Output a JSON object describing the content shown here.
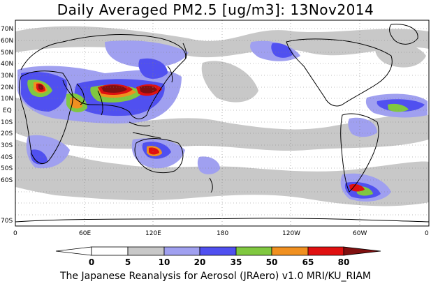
{
  "title": "Daily Averaged PM2.5 [ug/m3]: 13Nov2014",
  "footer": "The Japanese Reanalysis for Aerosol (JRAero) v1.0 MRI/KU_RIAM",
  "lat_labels": [
    "70N",
    "60N",
    "50N",
    "40N",
    "30N",
    "20N",
    "10N",
    "EQ",
    "10S",
    "20S",
    "30S",
    "40S",
    "50S",
    "60S",
    "70S"
  ],
  "lon_labels": [
    "0",
    "60E",
    "120E",
    "180",
    "120W",
    "60W",
    "0"
  ],
  "colorbar": {
    "thresholds": [
      "0",
      "5",
      "10",
      "20",
      "35",
      "50",
      "65",
      "80"
    ],
    "colors": [
      "#ffffff",
      "#c8c8c8",
      "#a0a0f0",
      "#5050f0",
      "#80c840",
      "#f09020",
      "#e01010",
      "#801010"
    ]
  }
}
